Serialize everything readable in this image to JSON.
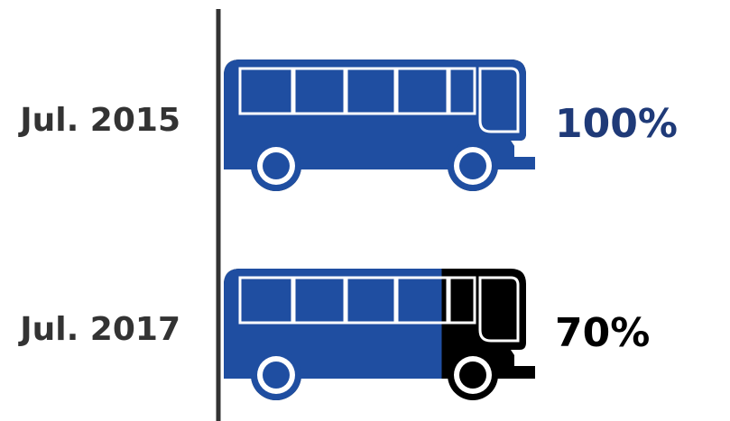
{
  "chart_data": {
    "type": "bar",
    "categories": [
      "Jul. 2015",
      "Jul. 2017"
    ],
    "values": [
      100,
      70
    ],
    "value_labels": [
      "100%",
      "70%"
    ],
    "xlim": [
      0,
      100
    ],
    "title": "",
    "xlabel": "",
    "ylabel": "",
    "grid": false,
    "legend": "none",
    "mark_icon": "bus-icon",
    "colors": {
      "fill": "#1f4ea1",
      "remainder": "#000000",
      "axis": "#333333",
      "row_label": "#333333",
      "value_labels": [
        "#1f3a78",
        "#000000"
      ]
    }
  }
}
